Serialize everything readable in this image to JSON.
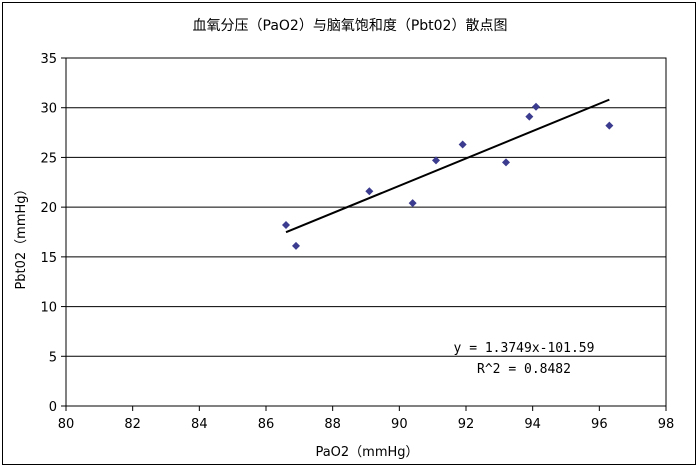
{
  "chart_data": {
    "type": "scatter",
    "title": "血氧分压（PaO2）与脑氧饱和度（Pbt02）散点图",
    "xlabel": "PaO2（mmHg）",
    "ylabel": "Pbt02（mmHg）",
    "xlim": [
      80,
      98
    ],
    "ylim": [
      0,
      35
    ],
    "x_ticks": [
      80,
      82,
      84,
      86,
      88,
      90,
      92,
      94,
      96,
      98
    ],
    "y_ticks": [
      0,
      5,
      10,
      15,
      20,
      25,
      30,
      35
    ],
    "x_tick_labels": [
      "80",
      "82",
      "84",
      "86",
      "88",
      "90",
      "92",
      "94",
      "96",
      "98"
    ],
    "y_tick_labels": [
      "0",
      "5",
      "10",
      "15",
      "20",
      "25",
      "30",
      "35"
    ],
    "grid": "horizontal",
    "points": [
      {
        "x": 86.6,
        "y": 18.2
      },
      {
        "x": 86.9,
        "y": 16.1
      },
      {
        "x": 89.1,
        "y": 21.6
      },
      {
        "x": 90.4,
        "y": 20.4
      },
      {
        "x": 91.1,
        "y": 24.7
      },
      {
        "x": 91.9,
        "y": 26.3
      },
      {
        "x": 93.2,
        "y": 24.5
      },
      {
        "x": 93.9,
        "y": 29.1
      },
      {
        "x": 94.1,
        "y": 30.1
      },
      {
        "x": 96.3,
        "y": 28.2
      }
    ],
    "trendline": {
      "slope": 1.3749,
      "intercept": -101.59,
      "x_start": 86.6,
      "x_end": 96.3,
      "equation": "y = 1.3749x-101.59",
      "r_squared": "R^2 = 0.8482"
    },
    "colors": {
      "marker": "#3b3b8f",
      "trendline": "#000000",
      "grid": "#000000"
    }
  }
}
